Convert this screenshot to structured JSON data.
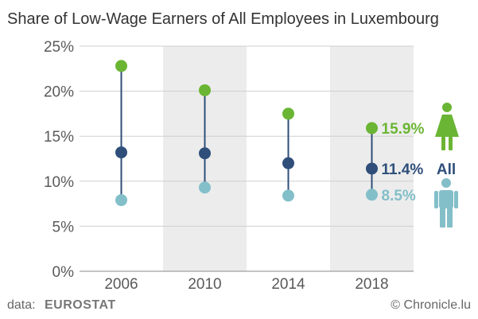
{
  "chart_data": {
    "type": "dot-range",
    "title": "Share of Low-Wage Earners of All Employees in Luxembourg",
    "xlabel": "",
    "ylabel": "",
    "categories": [
      "2006",
      "2010",
      "2014",
      "2018"
    ],
    "ylim": [
      0,
      25
    ],
    "y_ticks": [
      "0%",
      "5%",
      "10%",
      "15%",
      "20%",
      "25%"
    ],
    "y_tick_values": [
      0,
      5,
      10,
      15,
      20,
      25
    ],
    "series": [
      {
        "key": "women",
        "values": [
          22.8,
          20.1,
          17.5,
          15.9
        ],
        "color": "#6ab533",
        "icon": "woman-icon"
      },
      {
        "key": "all",
        "values": [
          13.2,
          13.1,
          12.0,
          11.4
        ],
        "color": "#2f4f7a"
      },
      {
        "key": "men",
        "values": [
          7.9,
          9.3,
          8.4,
          8.5
        ],
        "color": "#83bfc9",
        "icon": "man-icon"
      }
    ],
    "end_labels": {
      "women": "15.9%",
      "all": "11.4%",
      "all_name": "All",
      "men": "8.5%"
    },
    "shaded_categories": [
      "2010",
      "2018"
    ],
    "grid": true,
    "legend": "none"
  },
  "footer": {
    "source_prefix": "data:",
    "source_name": "EUROSTAT",
    "credit": "© Chronicle.lu"
  }
}
